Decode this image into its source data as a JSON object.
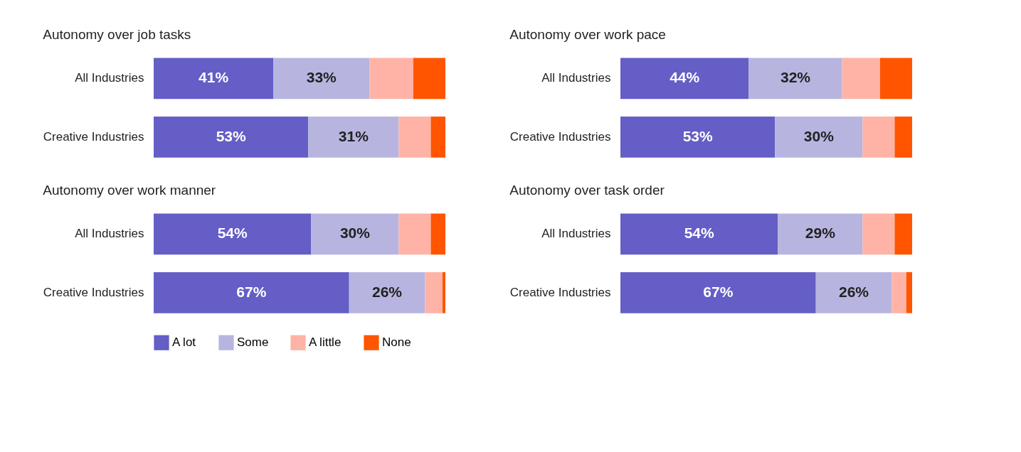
{
  "chart_data": [
    {
      "type": "bar",
      "orientation": "horizontal",
      "stacked": true,
      "title": "Autonomy over job tasks",
      "categories": [
        "All Industries",
        "Creative Industries"
      ],
      "xlim": [
        0,
        100
      ],
      "tick_labels": "y",
      "legend": "bottom",
      "series": [
        {
          "name": "A lot",
          "color": "#645ec6",
          "values": [
            41,
            53
          ],
          "value_labels": [
            "41%",
            "53%"
          ]
        },
        {
          "name": "Some",
          "color": "#b7b5e0",
          "values": [
            33,
            31
          ],
          "value_labels": [
            "33%",
            "31%"
          ]
        },
        {
          "name": "A little",
          "color": "#feb3a6",
          "values": [
            15,
            11
          ]
        },
        {
          "name": "None",
          "color": "#ff5500",
          "values": [
            11,
            5
          ]
        }
      ]
    },
    {
      "type": "bar",
      "orientation": "horizontal",
      "stacked": true,
      "title": "Autonomy over work pace",
      "categories": [
        "All Industries",
        "Creative Industries"
      ],
      "xlim": [
        0,
        100
      ],
      "tick_labels": "y",
      "legend": "bottom",
      "series": [
        {
          "name": "A lot",
          "color": "#645ec6",
          "values": [
            44,
            53
          ],
          "value_labels": [
            "44%",
            "53%"
          ]
        },
        {
          "name": "Some",
          "color": "#b7b5e0",
          "values": [
            32,
            30
          ],
          "value_labels": [
            "32%",
            "30%"
          ]
        },
        {
          "name": "A little",
          "color": "#feb3a6",
          "values": [
            13,
            11
          ]
        },
        {
          "name": "None",
          "color": "#ff5500",
          "values": [
            11,
            6
          ]
        }
      ]
    },
    {
      "type": "bar",
      "orientation": "horizontal",
      "stacked": true,
      "title": "Autonomy over work manner",
      "categories": [
        "All Industries",
        "Creative Industries"
      ],
      "xlim": [
        0,
        100
      ],
      "tick_labels": "y",
      "legend": "bottom",
      "series": [
        {
          "name": "A lot",
          "color": "#645ec6",
          "values": [
            54,
            67
          ],
          "value_labels": [
            "54%",
            "67%"
          ]
        },
        {
          "name": "Some",
          "color": "#b7b5e0",
          "values": [
            30,
            26
          ],
          "value_labels": [
            "30%",
            "26%"
          ]
        },
        {
          "name": "A little",
          "color": "#feb3a6",
          "values": [
            11,
            6
          ]
        },
        {
          "name": "None",
          "color": "#ff5500",
          "values": [
            5,
            1
          ]
        }
      ]
    },
    {
      "type": "bar",
      "orientation": "horizontal",
      "stacked": true,
      "title": "Autonomy over task order",
      "categories": [
        "All Industries",
        "Creative Industries"
      ],
      "xlim": [
        0,
        100
      ],
      "tick_labels": "y",
      "legend": "bottom",
      "series": [
        {
          "name": "A lot",
          "color": "#645ec6",
          "values": [
            54,
            67
          ],
          "value_labels": [
            "54%",
            "67%"
          ]
        },
        {
          "name": "Some",
          "color": "#b7b5e0",
          "values": [
            29,
            26
          ],
          "value_labels": [
            "29%",
            "26%"
          ]
        },
        {
          "name": "A little",
          "color": "#feb3a6",
          "values": [
            11,
            5
          ]
        },
        {
          "name": "None",
          "color": "#ff5500",
          "values": [
            6,
            2
          ]
        }
      ]
    }
  ]
}
